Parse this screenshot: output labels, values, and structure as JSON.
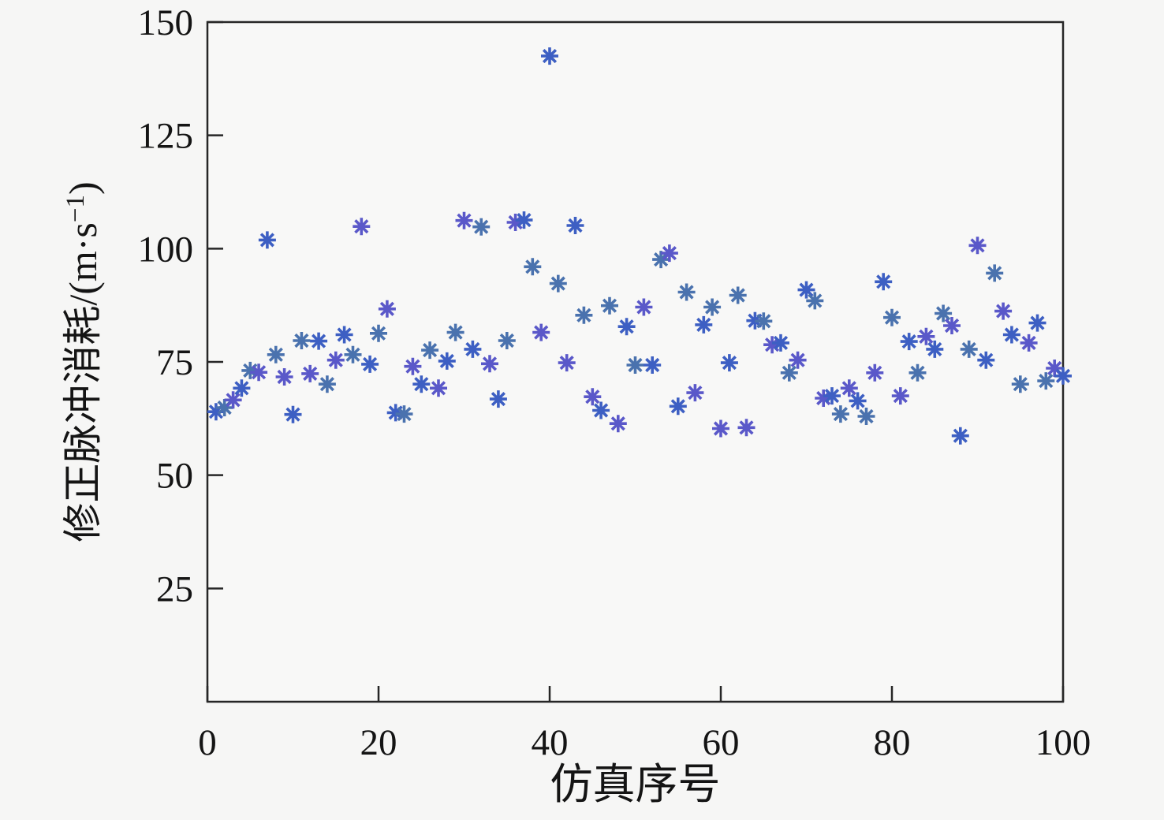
{
  "chart_data": {
    "type": "scatter",
    "title": "",
    "xlabel": "仿真序号",
    "ylabel_full": "修正脉冲消耗/(m·s−1)",
    "ylabel_base": "修正脉冲消耗/(m·s",
    "ylabel_superscript": "−1",
    "ylabel_suffix": ")",
    "xlim": [
      0,
      100
    ],
    "ylim": [
      0,
      150
    ],
    "xticks": [
      0,
      20,
      40,
      60,
      80,
      100
    ],
    "yticks": [
      25,
      50,
      75,
      100,
      125,
      150
    ],
    "grid": false,
    "legend": null,
    "box": true,
    "marker": "asterisk",
    "marker_size": 11,
    "marker_colors": [
      "#3d5fc3",
      "#4a72ae",
      "#5a58c9"
    ],
    "axis_color": "#262626",
    "background": "#f6f6f5",
    "plot_background": "#f8f8f7",
    "x": [
      1,
      2,
      3,
      4,
      5,
      6,
      7,
      8,
      9,
      10,
      11,
      12,
      13,
      14,
      15,
      16,
      17,
      18,
      19,
      20,
      21,
      22,
      23,
      24,
      25,
      26,
      27,
      28,
      29,
      30,
      31,
      32,
      33,
      34,
      35,
      36,
      37,
      38,
      39,
      40,
      41,
      42,
      43,
      44,
      45,
      46,
      47,
      48,
      49,
      50,
      51,
      52,
      53,
      54,
      55,
      56,
      57,
      58,
      59,
      60,
      61,
      62,
      63,
      64,
      65,
      66,
      67,
      68,
      69,
      70,
      71,
      72,
      73,
      74,
      75,
      76,
      77,
      78,
      79,
      80,
      81,
      82,
      83,
      84,
      85,
      86,
      87,
      88,
      89,
      90,
      91,
      92,
      93,
      94,
      95,
      96,
      97,
      98,
      99,
      100
    ],
    "y": [
      64.0,
      64.9,
      66.6,
      69.2,
      73.1,
      72.7,
      101.9,
      76.6,
      71.7,
      63.4,
      79.7,
      72.4,
      79.6,
      70.1,
      75.4,
      81.0,
      76.6,
      104.9,
      74.5,
      81.3,
      86.7,
      63.8,
      63.5,
      74.0,
      70.1,
      77.6,
      69.2,
      75.2,
      81.5,
      106.2,
      77.8,
      104.8,
      74.6,
      66.8,
      79.7,
      105.8,
      106.3,
      96.0,
      81.5,
      142.5,
      92.3,
      74.8,
      105.1,
      85.3,
      67.3,
      64.3,
      87.4,
      61.4,
      82.8,
      74.3,
      87.1,
      74.3,
      97.6,
      99.0,
      65.2,
      90.4,
      68.2,
      83.2,
      87.1,
      60.3,
      74.8,
      89.7,
      60.5,
      84.1,
      84.0,
      78.8,
      79.2,
      72.6,
      75.4,
      90.9,
      88.5,
      67.0,
      67.5,
      63.5,
      69.2,
      66.4,
      63.0,
      72.6,
      92.7,
      84.8,
      67.5,
      79.5,
      72.6,
      80.6,
      77.8,
      85.7,
      83.0,
      58.7,
      77.8,
      100.7,
      75.4,
      94.6,
      86.2,
      81.0,
      70.1,
      79.2,
      83.6,
      70.8,
      73.6,
      71.9
    ]
  }
}
